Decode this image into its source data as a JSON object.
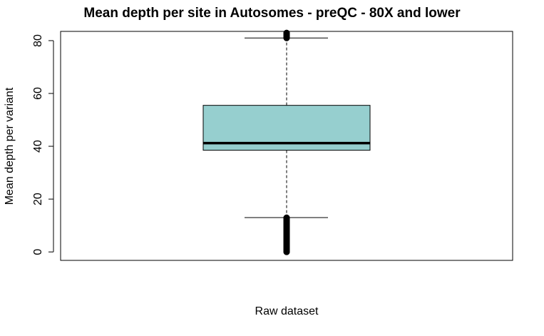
{
  "chart_data": {
    "type": "box",
    "title": "Mean depth per site in Autosomes - preQC - 80X and lower",
    "xlabel": "Raw dataset",
    "ylabel": "Mean depth per variant",
    "ylim": [
      -3.2,
      83.5
    ],
    "yticks": [
      0,
      20,
      40,
      60,
      80
    ],
    "series": [
      {
        "box_color": "#96cfcf",
        "whisker_low": 13,
        "q1": 38.5,
        "median": 41.2,
        "q3": 55.5,
        "whisker_high": 81,
        "outliers_low_range": [
          0,
          13
        ],
        "outliers_high_range": [
          81,
          83
        ]
      }
    ]
  }
}
